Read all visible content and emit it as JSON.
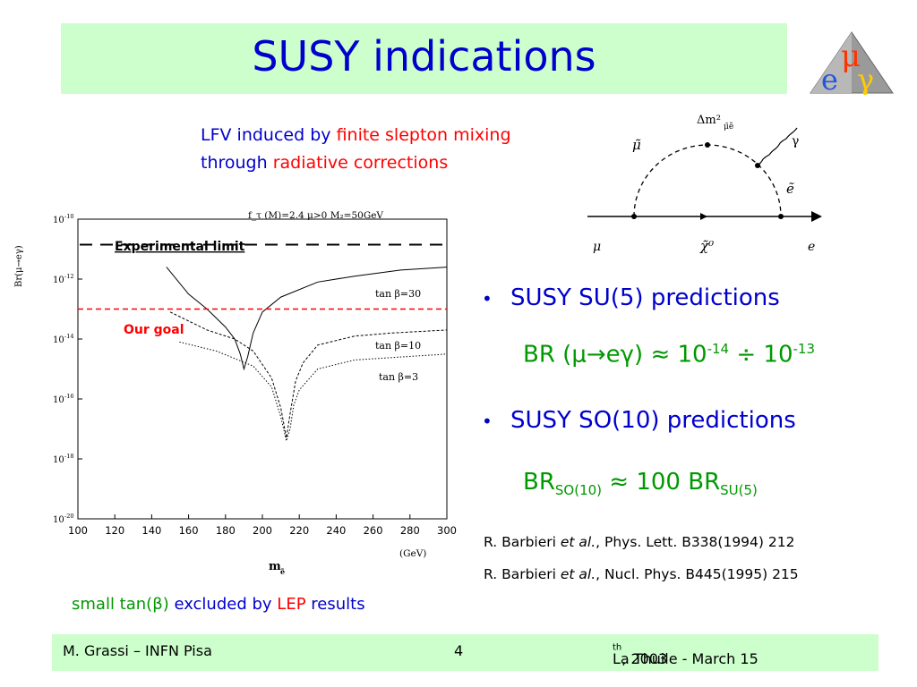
{
  "slide": {
    "title": "SUSY indications",
    "intro": {
      "line1_a": "LFV induced by ",
      "line1_b": "finite slepton mixing",
      "line2_a": "through ",
      "line2_b": "radiative corrections"
    },
    "logo": {
      "mu": "μ",
      "e": "e",
      "gamma": "γ"
    },
    "diagram": {
      "mass_insertion": "Δm²",
      "mass_insertion_sub": "μ̃ẽ",
      "smuon": "μ̃",
      "selectron": "ẽ",
      "photon": "γ",
      "neutralino": "χ̃⁰",
      "muon": "μ",
      "electron": "e"
    },
    "plot": {
      "header": "f_τ (M)=2.4  μ>0    M₂=50GeV",
      "experimental_label": "Experimental limit",
      "goal_label": "Our goal",
      "y_axis_label": "Br(μ→eγ)",
      "x_axis_label": "m",
      "x_axis_sub": "ẽ",
      "x_unit": "(GeV)",
      "x_ticks": [
        "100",
        "120",
        "140",
        "160",
        "180",
        "200",
        "220",
        "240",
        "260",
        "280",
        "300"
      ],
      "y_ticks": [
        "10",
        "10",
        "10",
        "10",
        "10",
        "10"
      ],
      "y_tick_exps": [
        "-10",
        "-12",
        "-14",
        "-16",
        "-18",
        "-20"
      ],
      "curve_labels": [
        "tan β=30",
        "tan β=10",
        "tan β=3"
      ]
    },
    "chart_data": {
      "type": "line",
      "xlabel": "m",
      "ylabel": "Br(μ→eγ)",
      "xlim": [
        100,
        300
      ],
      "ylim": [
        -20,
        -10
      ],
      "y_scale": "log10",
      "series": [
        {
          "name": "tan β=30",
          "x": [
            148,
            160,
            170,
            180,
            185,
            188,
            190,
            192,
            195,
            200,
            210,
            230,
            250,
            275,
            300
          ],
          "y": [
            -11.6,
            -12.5,
            -13.0,
            -13.6,
            -14.0,
            -14.5,
            -15.0,
            -14.6,
            -13.8,
            -13.1,
            -12.6,
            -12.1,
            -11.9,
            -11.7,
            -11.6
          ]
        },
        {
          "name": "tan β=10",
          "x": [
            150,
            170,
            185,
            195,
            205,
            210,
            213,
            215,
            218,
            222,
            230,
            250,
            270,
            300
          ],
          "y": [
            -13.1,
            -13.7,
            -14.0,
            -14.4,
            -15.3,
            -16.3,
            -17.3,
            -16.5,
            -15.4,
            -14.8,
            -14.2,
            -13.9,
            -13.8,
            -13.7
          ]
        },
        {
          "name": "tan β=3",
          "x": [
            155,
            175,
            195,
            205,
            210,
            213,
            215,
            217,
            220,
            230,
            250,
            275,
            300
          ],
          "y": [
            -14.1,
            -14.4,
            -14.9,
            -15.6,
            -16.6,
            -17.4,
            -17.0,
            -16.2,
            -15.7,
            -15.0,
            -14.7,
            -14.6,
            -14.5
          ]
        }
      ],
      "reference_lines": [
        {
          "label": "Experimental limit",
          "y": -10.85
        },
        {
          "label": "Our goal",
          "y": -13.0
        }
      ]
    },
    "bullets": [
      {
        "text": "SUSY SU(5) predictions"
      },
      {
        "text": "SUSY SO(10) predictions"
      }
    ],
    "formula1": {
      "br": "BR (",
      "mu": "μ",
      "arrow": "→",
      "e": "e",
      "gamma": "γ",
      "close": ") ≈ 10",
      "exp1": "-14",
      "div": " ÷ 10",
      "exp2": "-13"
    },
    "formula2": {
      "br": "BR",
      "sub1": "SO(10)",
      "mid": " ≈ 100 BR",
      "sub2": "SU(5)"
    },
    "references": [
      {
        "pre": "R. Barbieri ",
        "etal": "et al.",
        "post": ", Phys. Lett. B338(1994) 212"
      },
      {
        "pre": "R. Barbieri ",
        "etal": "et al.",
        "post": ", Nucl. Phys. B445(1995) 215"
      }
    ],
    "note": {
      "a": "small tan(",
      "beta": "β",
      "b": ") ",
      "c": "excluded by ",
      "d": "LEP",
      "e": " results"
    },
    "footer": {
      "left": "M. Grassi – INFN Pisa",
      "page": "4",
      "right_a": "La Thuile -  March 15",
      "right_sup": "th",
      "right_b": " , 2003"
    },
    "colors": {
      "title_bg": "#ccffcc",
      "blue": "#0000cc",
      "red": "#ff0000",
      "green": "#009900"
    }
  }
}
